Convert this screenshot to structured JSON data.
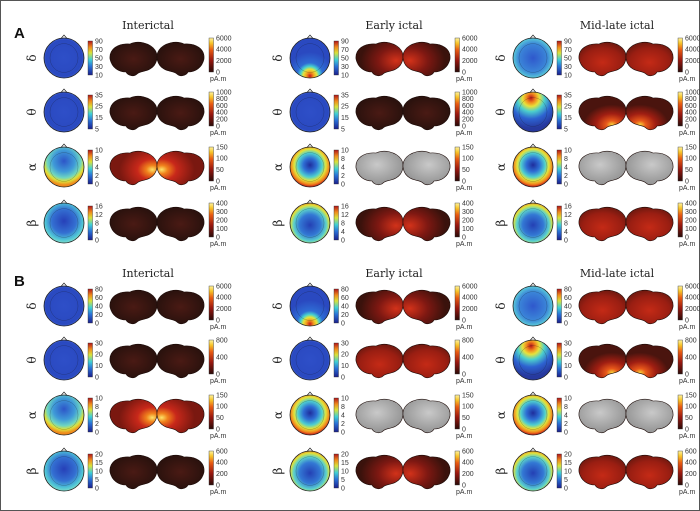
{
  "panels": [
    {
      "label": "A",
      "columns": [
        "Interictal",
        "Early ictal",
        "Mid-late ictal"
      ],
      "rows": [
        {
          "band": "δ",
          "topo_ticks": [
            [
              "90",
              "70",
              "50",
              "30",
              "10"
            ],
            [
              "90",
              "70",
              "50",
              "30",
              "10"
            ],
            [
              "90",
              "70",
              "50",
              "30",
              "10"
            ]
          ],
          "brain_ticks": [
            [
              "6000",
              "4000",
              "2000",
              "0"
            ],
            [
              "6000",
              "4000",
              "2000",
              "0"
            ],
            [
              "6000",
              "4000",
              "2000",
              "0"
            ]
          ],
          "topo": [
            "uniform-blue",
            "occipital-hot",
            "diffuse-cyan"
          ],
          "brain": [
            "dark",
            "red-posterior",
            "red-widespread"
          ]
        },
        {
          "band": "θ",
          "topo_ticks": [
            [
              "35",
              "25",
              "15",
              "5"
            ],
            [
              "35",
              "25",
              "15",
              "5"
            ],
            [
              "35",
              "25",
              "15",
              "5"
            ]
          ],
          "brain_ticks": [
            [
              "1000",
              "800",
              "600",
              "400",
              "200",
              "0"
            ],
            [
              "1000",
              "800",
              "600",
              "400",
              "200",
              "0"
            ],
            [
              "1000",
              "800",
              "600",
              "400",
              "200",
              "0"
            ]
          ],
          "topo": [
            "uniform-blue",
            "uniform-blue",
            "frontal-hot"
          ],
          "brain": [
            "dark",
            "dark",
            "red-temporal"
          ]
        },
        {
          "band": "α",
          "topo_ticks": [
            [
              "10",
              "8",
              "4",
              "2",
              "0"
            ],
            [
              "10",
              "8",
              "4",
              "2",
              "0"
            ],
            [
              "10",
              "8",
              "4",
              "2",
              "0"
            ]
          ],
          "brain_ticks": [
            [
              "150",
              "100",
              "50",
              "0"
            ],
            [
              "150",
              "100",
              "50",
              "0"
            ],
            [
              "150",
              "100",
              "50",
              "0"
            ]
          ],
          "topo": [
            "occipital-ring",
            "center-ring",
            "center-ring"
          ],
          "brain": [
            "red-posterior-hot",
            "gray",
            "gray"
          ]
        },
        {
          "band": "β",
          "topo_ticks": [
            [
              "16",
              "12",
              "8",
              "4",
              "0"
            ],
            [
              "16",
              "12",
              "8",
              "4",
              "0"
            ],
            [
              "16",
              "12",
              "8",
              "4",
              "0"
            ]
          ],
          "brain_ticks": [
            [
              "400",
              "300",
              "200",
              "100",
              "0"
            ],
            [
              "400",
              "300",
              "200",
              "100",
              "0"
            ],
            [
              "400",
              "300",
              "200",
              "100",
              "0"
            ]
          ],
          "topo": [
            "blue-edge-cyan",
            "blue-edge-hot",
            "blue-edge-hot"
          ],
          "brain": [
            "dark",
            "red-posterior",
            "red-widespread"
          ]
        }
      ],
      "unit": "pA.m"
    },
    {
      "label": "B",
      "columns": [
        "Interictal",
        "Early ictal",
        "Mid-late ictal"
      ],
      "rows": [
        {
          "band": "δ",
          "topo_ticks": [
            [
              "80",
              "60",
              "40",
              "20",
              "0"
            ],
            [
              "80",
              "60",
              "40",
              "20",
              "0"
            ],
            [
              "80",
              "60",
              "40",
              "20",
              "0"
            ]
          ],
          "brain_ticks": [
            [
              "6000",
              "4000",
              "2000",
              "0"
            ],
            [
              "6000",
              "4000",
              "2000",
              "0"
            ],
            [
              "6000",
              "4000",
              "2000",
              "0"
            ]
          ],
          "topo": [
            "uniform-blue",
            "occipital-hot",
            "diffuse-cyan"
          ],
          "brain": [
            "dark",
            "red-posterior",
            "red-widespread"
          ]
        },
        {
          "band": "θ",
          "topo_ticks": [
            [
              "30",
              "20",
              "10",
              "0"
            ],
            [
              "30",
              "20",
              "10",
              "0"
            ],
            [
              "30",
              "20",
              "10",
              "0"
            ]
          ],
          "brain_ticks": [
            [
              "800",
              "400",
              "0"
            ],
            [
              "800",
              "400",
              "0"
            ],
            [
              "800",
              "400",
              "0"
            ]
          ],
          "topo": [
            "uniform-blue",
            "uniform-blue",
            "frontal-hot"
          ],
          "brain": [
            "dark",
            "red-widespread",
            "red-temporal"
          ]
        },
        {
          "band": "α",
          "topo_ticks": [
            [
              "10",
              "8",
              "4",
              "2",
              "0"
            ],
            [
              "10",
              "8",
              "4",
              "2",
              "0"
            ],
            [
              "10",
              "8",
              "4",
              "2",
              "0"
            ]
          ],
          "brain_ticks": [
            [
              "150",
              "100",
              "50",
              "0"
            ],
            [
              "150",
              "100",
              "50",
              "0"
            ],
            [
              "150",
              "100",
              "50",
              "0"
            ]
          ],
          "topo": [
            "occipital-ring",
            "center-ring",
            "center-ring"
          ],
          "brain": [
            "red-posterior-hot",
            "gray",
            "gray"
          ]
        },
        {
          "band": "β",
          "topo_ticks": [
            [
              "20",
              "15",
              "10",
              "5",
              "0"
            ],
            [
              "20",
              "15",
              "10",
              "5",
              "0"
            ],
            [
              "20",
              "15",
              "10",
              "5",
              "0"
            ]
          ],
          "brain_ticks": [
            [
              "600",
              "400",
              "200",
              "0"
            ],
            [
              "600",
              "400",
              "200",
              "0"
            ],
            [
              "600",
              "400",
              "200",
              "0"
            ]
          ],
          "topo": [
            "blue-edge-cyan",
            "blue-edge-hot",
            "blue-edge-hot"
          ],
          "brain": [
            "dark",
            "red-posterior",
            "red-widespread"
          ]
        }
      ],
      "unit": "pA.m"
    }
  ]
}
